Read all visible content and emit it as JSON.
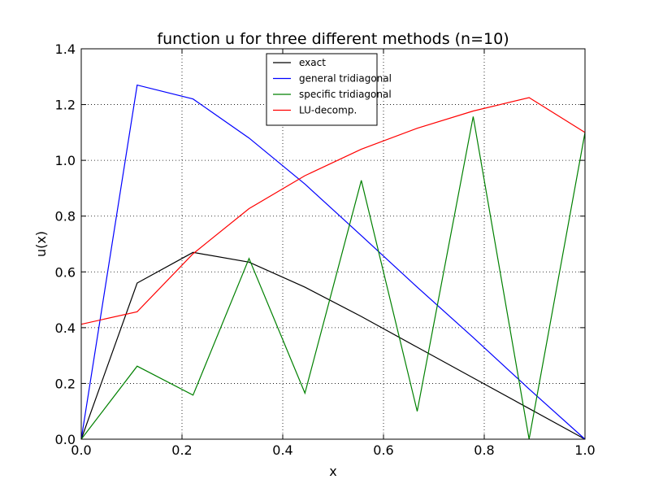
{
  "chart_data": {
    "type": "line",
    "title": "function u for three different methods (n=10)",
    "xlabel": "x",
    "ylabel": "u(x)",
    "xlim": [
      0.0,
      1.0
    ],
    "ylim": [
      0.0,
      1.4
    ],
    "xticks": [
      "0.0",
      "0.2",
      "0.4",
      "0.6",
      "0.8",
      "1.0"
    ],
    "yticks": [
      "0.0",
      "0.2",
      "0.4",
      "0.6",
      "0.8",
      "1.0",
      "1.2",
      "1.4"
    ],
    "grid": true,
    "legend_position": "top-center",
    "x": [
      0.0,
      0.111,
      0.222,
      0.333,
      0.444,
      0.556,
      0.667,
      0.778,
      0.889,
      1.0
    ],
    "series": [
      {
        "name": "exact",
        "color": "#000000",
        "values": [
          0.0,
          0.56,
          0.67,
          0.635,
          0.545,
          0.44,
          0.33,
          0.22,
          0.11,
          0.0
        ]
      },
      {
        "name": "general tridiagonal",
        "color": "#0000ff",
        "values": [
          0.0,
          1.27,
          1.22,
          1.08,
          0.915,
          0.73,
          0.545,
          0.365,
          0.18,
          0.0
        ]
      },
      {
        "name": "specific tridiagonal",
        "color": "#008000",
        "values": [
          0.0,
          0.262,
          0.158,
          0.648,
          0.165,
          0.928,
          0.1,
          1.157,
          0.0,
          1.1
        ]
      },
      {
        "name": "LU-decomp.",
        "color": "#ff0000",
        "values": [
          0.412,
          0.457,
          0.665,
          0.827,
          0.945,
          1.04,
          1.115,
          1.177,
          1.225,
          1.1
        ]
      }
    ]
  }
}
